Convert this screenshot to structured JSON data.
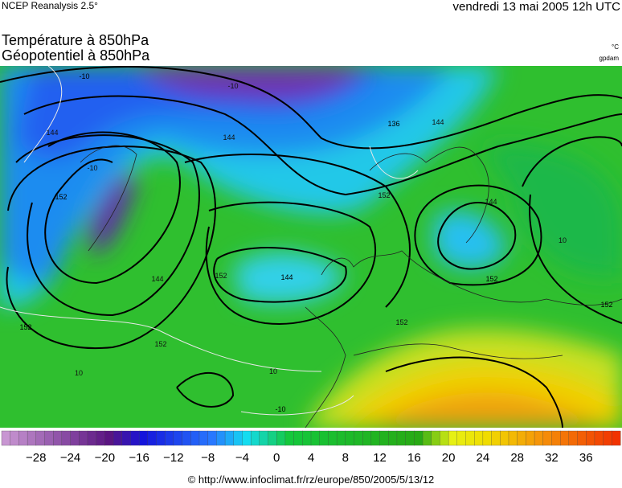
{
  "header": {
    "source": "NCEP Reanalysis 2.5°",
    "date": "vendredi 13 mai 2005 12h UTC"
  },
  "titles": [
    "Température à 850hPa",
    "Géopotentiel à 850hPa"
  ],
  "units": [
    "°C",
    "gpdam"
  ],
  "map": {
    "contour_labels": [
      "-10",
      "144",
      "-10",
      "152",
      "144",
      "144",
      "136",
      "144",
      "152",
      "144",
      "152",
      "144",
      "152",
      "152",
      "152",
      "152",
      "10",
      "10",
      "-10",
      "10",
      "-10",
      "152"
    ]
  },
  "colorbar": {
    "labels": [
      "−28",
      "−24",
      "−20",
      "−16",
      "−12",
      "−8",
      "−4",
      "0",
      "4",
      "8",
      "12",
      "16",
      "20",
      "24",
      "28",
      "32",
      "36"
    ]
  },
  "footer": "© http://www.infoclimat.fr/rz/europe/850/2005/5/13/12"
}
